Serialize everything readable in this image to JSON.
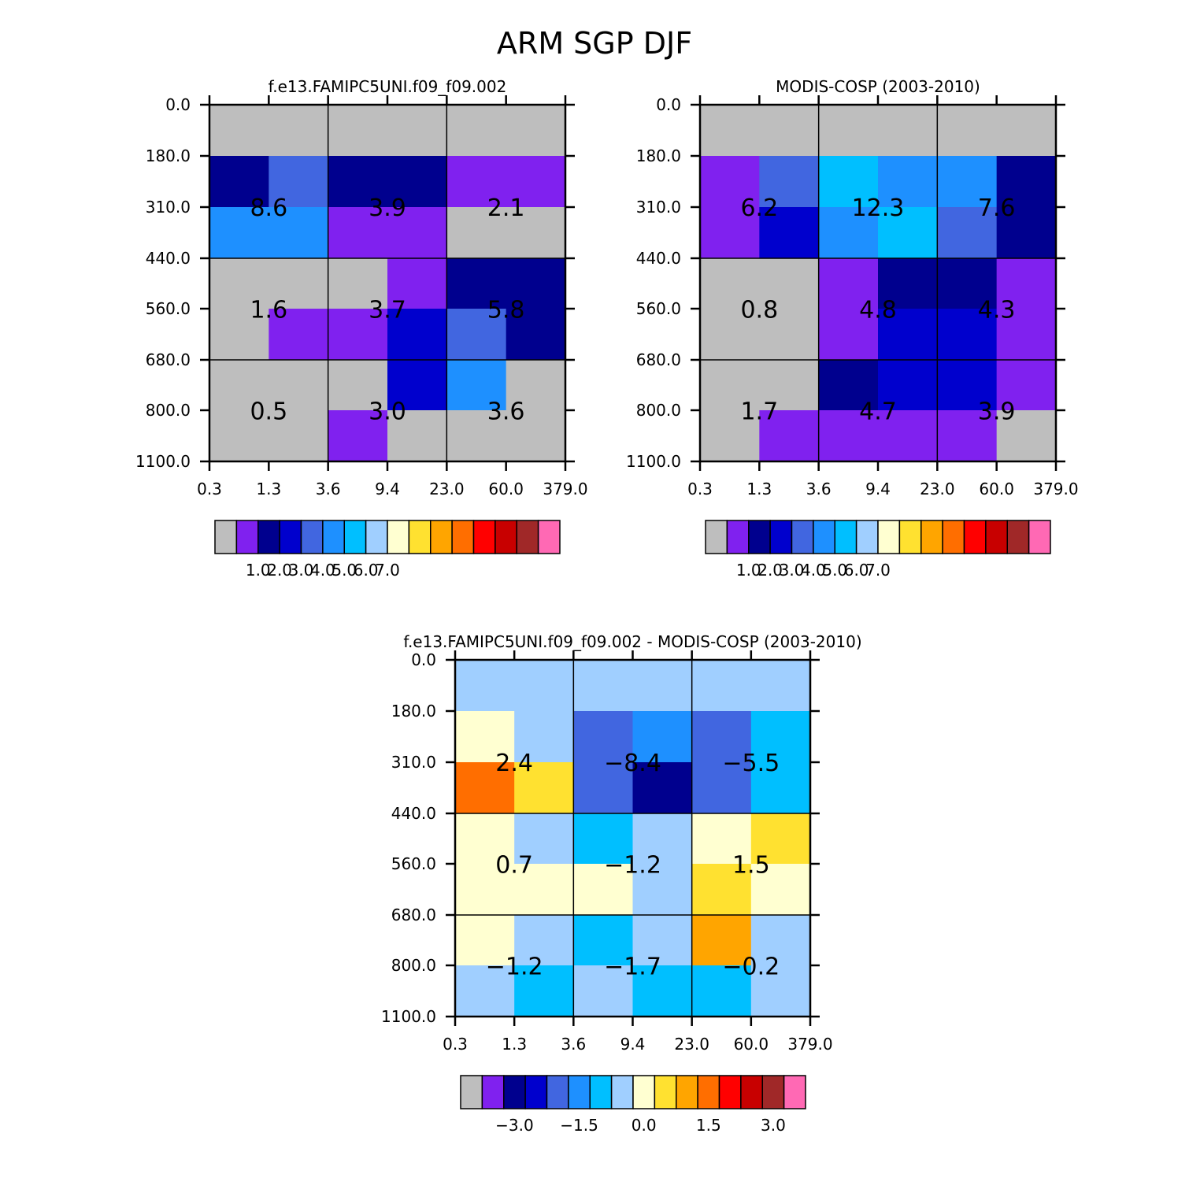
{
  "title": "ARM SGP DJF",
  "colors": {
    "palette": [
      "#bebebe",
      "#8021ef",
      "#00008e",
      "#0000cd",
      "#4166e0",
      "#1e90ff",
      "#00bfff",
      "#a0cfff",
      "#ffffd1",
      "#ffe130",
      "#ffa500",
      "#ff6e00",
      "#ff0000",
      "#c80000",
      "#a02828",
      "#ff69b4"
    ]
  },
  "chart_data": [
    {
      "type": "heatmap",
      "title": "f.e13.FAMIPC5UNI.f09_f09.002",
      "x_ticks": [
        "0.3",
        "1.3",
        "3.6",
        "9.4",
        "23.0",
        "60.0",
        "379.0"
      ],
      "y_ticks": [
        "0.0",
        "180.0",
        "310.0",
        "440.0",
        "560.0",
        "680.0",
        "800.0",
        "1100.0"
      ],
      "cells": [
        [
          0,
          0,
          0,
          0,
          0,
          0
        ],
        [
          2,
          4,
          2,
          2,
          1,
          1
        ],
        [
          5,
          5,
          1,
          1,
          0,
          0
        ],
        [
          0,
          0,
          0,
          1,
          2,
          2
        ],
        [
          0,
          1,
          1,
          3,
          4,
          2
        ],
        [
          0,
          0,
          0,
          3,
          5,
          0
        ],
        [
          0,
          0,
          1,
          0,
          0,
          0
        ]
      ],
      "box_labels": [
        [
          "8.6",
          "3.9",
          "2.1"
        ],
        [
          "1.6",
          "3.7",
          "5.8"
        ],
        [
          "0.5",
          "3.0",
          "3.6"
        ]
      ],
      "colorbar_labels": [
        "1.0",
        "2.0",
        "3.0",
        "4.0",
        "5.0",
        "6.0",
        "7.0"
      ]
    },
    {
      "type": "heatmap",
      "title": "MODIS-COSP (2003-2010)",
      "x_ticks": [
        "0.3",
        "1.3",
        "3.6",
        "9.4",
        "23.0",
        "60.0",
        "379.0"
      ],
      "y_ticks": [
        "0.0",
        "180.0",
        "310.0",
        "440.0",
        "560.0",
        "680.0",
        "800.0",
        "1100.0"
      ],
      "cells": [
        [
          0,
          0,
          0,
          0,
          0,
          0
        ],
        [
          1,
          4,
          6,
          5,
          5,
          2
        ],
        [
          1,
          3,
          5,
          6,
          4,
          2
        ],
        [
          0,
          0,
          1,
          2,
          2,
          1
        ],
        [
          0,
          0,
          1,
          3,
          3,
          1
        ],
        [
          0,
          0,
          2,
          3,
          3,
          1
        ],
        [
          0,
          1,
          1,
          1,
          1,
          0
        ]
      ],
      "box_labels": [
        [
          "6.2",
          "12.3",
          "7.6"
        ],
        [
          "0.8",
          "4.8",
          "4.3"
        ],
        [
          "1.7",
          "4.7",
          "3.9"
        ]
      ],
      "colorbar_labels": [
        "1.0",
        "2.0",
        "3.0",
        "4.0",
        "5.0",
        "6.0",
        "7.0"
      ]
    },
    {
      "type": "heatmap",
      "title": "f.e13.FAMIPC5UNI.f09_f09.002 - MODIS-COSP (2003-2010)",
      "x_ticks": [
        "0.3",
        "1.3",
        "3.6",
        "9.4",
        "23.0",
        "60.0",
        "379.0"
      ],
      "y_ticks": [
        "0.0",
        "180.0",
        "310.0",
        "440.0",
        "560.0",
        "680.0",
        "800.0",
        "1100.0"
      ],
      "cells": [
        [
          7,
          7,
          7,
          7,
          7,
          7
        ],
        [
          8,
          7,
          4,
          5,
          4,
          6
        ],
        [
          11,
          9,
          4,
          2,
          4,
          6
        ],
        [
          8,
          7,
          6,
          7,
          8,
          9
        ],
        [
          8,
          8,
          8,
          7,
          9,
          8
        ],
        [
          8,
          7,
          6,
          7,
          10,
          7
        ],
        [
          7,
          6,
          7,
          6,
          6,
          7
        ]
      ],
      "box_labels": [
        [
          "2.4",
          "−8.4",
          "−5.5"
        ],
        [
          "0.7",
          "−1.2",
          "1.5"
        ],
        [
          "−1.2",
          "−1.7",
          "−0.2"
        ]
      ],
      "colorbar_labels": [
        "−3.0",
        "−1.5",
        "0.0",
        "1.5",
        "3.0"
      ]
    }
  ]
}
